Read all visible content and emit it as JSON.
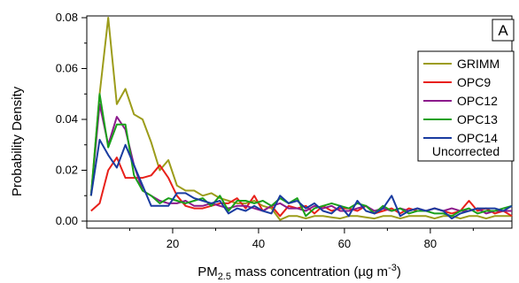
{
  "chart_data": {
    "type": "line",
    "panel_label": "A",
    "xlabel_main": "PM",
    "xlabel_sub": "2.5",
    "xlabel_rest": " mass concentration (µg m",
    "xlabel_sup": "-3",
    "xlabel_end": ")",
    "ylabel": "Probability Density",
    "xlim": [
      0,
      99
    ],
    "ylim": [
      0,
      0.08
    ],
    "x_ticks": [
      20,
      40,
      60,
      80
    ],
    "y_ticks": [
      0.0,
      0.02,
      0.04,
      0.06,
      0.08
    ],
    "y_tick_labels": [
      "0.00",
      "0.02",
      "0.04",
      "0.06",
      "0.08"
    ],
    "legend_note": "Uncorrected",
    "x": [
      1,
      3,
      5,
      7,
      9,
      11,
      13,
      15,
      17,
      19,
      21,
      23,
      25,
      27,
      29,
      31,
      33,
      35,
      37,
      39,
      41,
      43,
      45,
      47,
      49,
      51,
      53,
      55,
      57,
      59,
      61,
      63,
      65,
      67,
      69,
      71,
      73,
      75,
      77,
      79,
      81,
      83,
      85,
      87,
      89,
      91,
      93,
      95,
      97,
      99
    ],
    "series": [
      {
        "name": "GRIMM",
        "color": "#9c9c1a",
        "values": [
          0.01,
          0.05,
          0.08,
          0.046,
          0.052,
          0.042,
          0.04,
          0.031,
          0.02,
          0.024,
          0.014,
          0.012,
          0.012,
          0.01,
          0.011,
          0.009,
          0.008,
          0.007,
          0.007,
          0.008,
          0.006,
          0.005,
          0.0005,
          0.002,
          0.002,
          0.001,
          0.002,
          0.002,
          0.0015,
          0.001,
          0.002,
          0.002,
          0.0015,
          0.001,
          0.002,
          0.002,
          0.001,
          0.002,
          0.002,
          0.002,
          0.001,
          0.002,
          0.002,
          0.001,
          0.002,
          0.002,
          0.001,
          0.002,
          0.002,
          0.002
        ]
      },
      {
        "name": "OPC9",
        "color": "#e8201a",
        "values": [
          0.004,
          0.007,
          0.02,
          0.025,
          0.017,
          0.017,
          0.017,
          0.018,
          0.022,
          0.017,
          0.01,
          0.006,
          0.005,
          0.005,
          0.006,
          0.007,
          0.007,
          0.009,
          0.005,
          0.01,
          0.004,
          0.006,
          0.002,
          0.006,
          0.005,
          0.006,
          0.003,
          0.006,
          0.004,
          0.005,
          0.005,
          0.004,
          0.006,
          0.003,
          0.004,
          0.005,
          0.003,
          0.005,
          0.004,
          0.004,
          0.005,
          0.004,
          0.003,
          0.004,
          0.008,
          0.004,
          0.005,
          0.003,
          0.004,
          0.002
        ]
      },
      {
        "name": "OPC12",
        "color": "#8c1a8c",
        "values": [
          0.01,
          0.046,
          0.03,
          0.041,
          0.036,
          0.022,
          0.012,
          0.01,
          0.008,
          0.007,
          0.007,
          0.008,
          0.006,
          0.006,
          0.007,
          0.006,
          0.005,
          0.006,
          0.006,
          0.005,
          0.004,
          0.006,
          0.007,
          0.005,
          0.005,
          0.004,
          0.006,
          0.005,
          0.006,
          0.004,
          0.004,
          0.005,
          0.006,
          0.004,
          0.005,
          0.004,
          0.005,
          0.004,
          0.005,
          0.004,
          0.005,
          0.004,
          0.005,
          0.004,
          0.004,
          0.005,
          0.003,
          0.004,
          0.004,
          0.004
        ]
      },
      {
        "name": "OPC13",
        "color": "#1aa01a",
        "values": [
          0.01,
          0.05,
          0.029,
          0.038,
          0.038,
          0.018,
          0.012,
          0.01,
          0.007,
          0.009,
          0.008,
          0.007,
          0.008,
          0.009,
          0.006,
          0.01,
          0.004,
          0.008,
          0.008,
          0.007,
          0.008,
          0.006,
          0.009,
          0.007,
          0.009,
          0.002,
          0.005,
          0.006,
          0.007,
          0.006,
          0.005,
          0.007,
          0.006,
          0.003,
          0.006,
          0.004,
          0.005,
          0.003,
          0.004,
          0.004,
          0.003,
          0.003,
          0.002,
          0.004,
          0.005,
          0.003,
          0.004,
          0.004,
          0.005,
          0.006
        ]
      },
      {
        "name": "OPC14",
        "color": "#1a3ca0",
        "values": [
          0.01,
          0.032,
          0.026,
          0.021,
          0.03,
          0.022,
          0.014,
          0.006,
          0.006,
          0.006,
          0.011,
          0.011,
          0.009,
          0.008,
          0.007,
          0.008,
          0.003,
          0.005,
          0.004,
          0.006,
          0.004,
          0.003,
          0.01,
          0.007,
          0.008,
          0.005,
          0.007,
          0.004,
          0.003,
          0.006,
          0.002,
          0.008,
          0.004,
          0.003,
          0.005,
          0.01,
          0.002,
          0.004,
          0.005,
          0.004,
          0.005,
          0.004,
          0.001,
          0.003,
          0.004,
          0.005,
          0.005,
          0.005,
          0.004,
          0.006
        ]
      }
    ]
  }
}
